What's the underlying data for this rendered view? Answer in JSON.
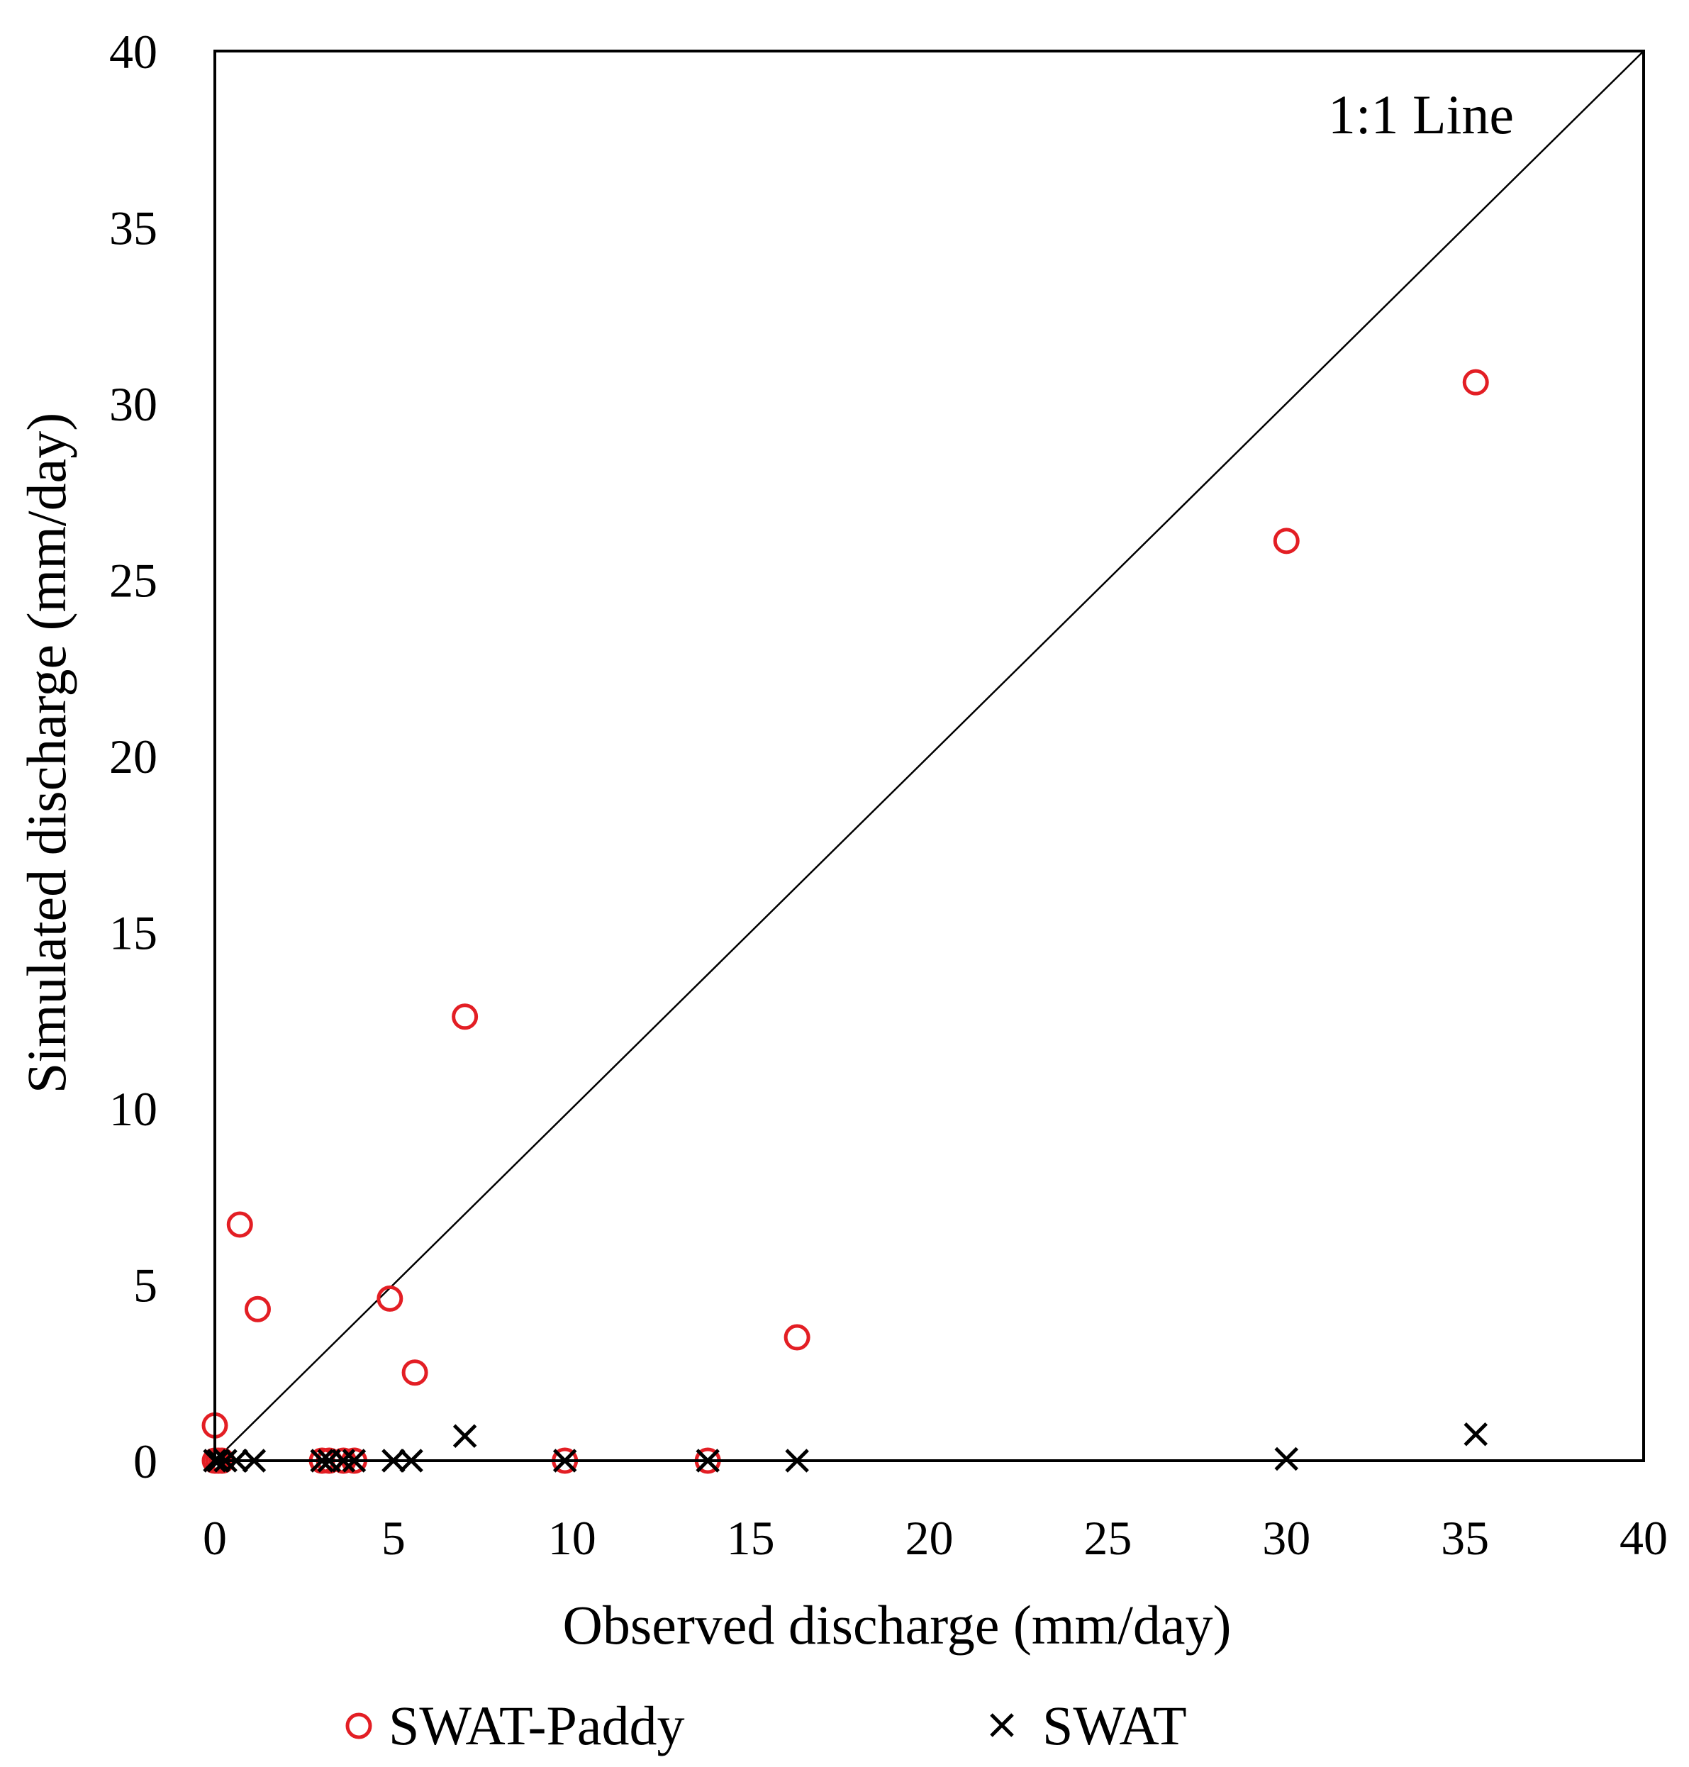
{
  "chart_data": {
    "type": "scatter",
    "title": "",
    "xlabel": "Observed discharge (mm/day)",
    "ylabel": "Simulated discharge (mm/day)",
    "xlim": [
      0,
      40
    ],
    "ylim": [
      0,
      40
    ],
    "xticks": [
      "0",
      "5",
      "10",
      "15",
      "20",
      "25",
      "30",
      "35",
      "40"
    ],
    "yticks": [
      "0",
      "5",
      "10",
      "15",
      "20",
      "25",
      "30",
      "35",
      "40"
    ],
    "grid": false,
    "legend_position": "bottom",
    "annotations": [
      {
        "text": "1:1 Line"
      }
    ],
    "reference_line": {
      "name": "1:1 Line",
      "from": [
        0,
        0
      ],
      "to": [
        40,
        40
      ]
    },
    "series": [
      {
        "name": "SWAT-Paddy",
        "marker": "circle",
        "color": "#e31e24",
        "points": [
          {
            "x": 0,
            "y": 1.0
          },
          {
            "x": 0,
            "y": 0
          },
          {
            "x": 0.1,
            "y": 0
          },
          {
            "x": 0.2,
            "y": 0
          },
          {
            "x": 0.7,
            "y": 6.7
          },
          {
            "x": 1.2,
            "y": 4.3
          },
          {
            "x": 3.0,
            "y": 0
          },
          {
            "x": 3.2,
            "y": 0
          },
          {
            "x": 3.6,
            "y": 0
          },
          {
            "x": 3.9,
            "y": 0
          },
          {
            "x": 4.9,
            "y": 4.6
          },
          {
            "x": 5.6,
            "y": 2.5
          },
          {
            "x": 7.0,
            "y": 12.6
          },
          {
            "x": 9.8,
            "y": 0
          },
          {
            "x": 13.8,
            "y": 0
          },
          {
            "x": 16.3,
            "y": 3.5
          },
          {
            "x": 30.0,
            "y": 26.1
          },
          {
            "x": 35.3,
            "y": 30.6
          }
        ]
      },
      {
        "name": "SWAT",
        "marker": "x",
        "color": "#000000",
        "points": [
          {
            "x": 0,
            "y": 0
          },
          {
            "x": 0.1,
            "y": 0
          },
          {
            "x": 0.3,
            "y": 0
          },
          {
            "x": 0.6,
            "y": 0
          },
          {
            "x": 1.1,
            "y": 0
          },
          {
            "x": 3.0,
            "y": 0
          },
          {
            "x": 3.2,
            "y": 0
          },
          {
            "x": 3.6,
            "y": 0
          },
          {
            "x": 3.9,
            "y": 0
          },
          {
            "x": 5.0,
            "y": 0
          },
          {
            "x": 5.5,
            "y": 0
          },
          {
            "x": 7.0,
            "y": 0.7
          },
          {
            "x": 9.8,
            "y": 0
          },
          {
            "x": 13.8,
            "y": 0
          },
          {
            "x": 16.3,
            "y": 0
          },
          {
            "x": 30.0,
            "y": 0.05
          },
          {
            "x": 35.3,
            "y": 0.75
          }
        ]
      }
    ]
  }
}
